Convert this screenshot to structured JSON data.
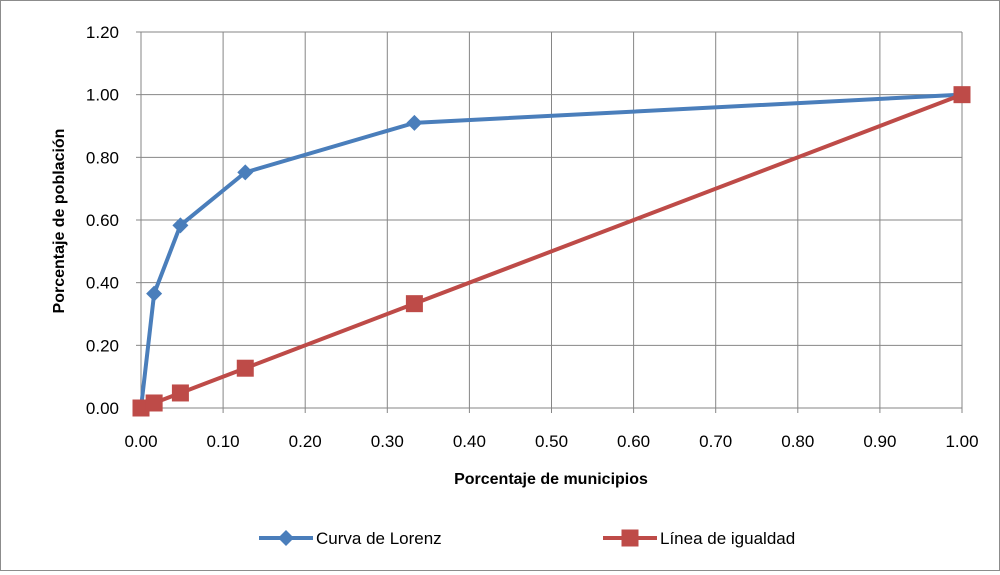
{
  "chart_data": {
    "type": "scatter",
    "title": "",
    "xlabel": "Porcentaje de municipios",
    "ylabel": "Porcentaje de población",
    "xlim": [
      0,
      1
    ],
    "ylim": [
      0,
      1.2
    ],
    "x_ticks": [
      "0.00",
      "0.10",
      "0.20",
      "0.30",
      "0.40",
      "0.50",
      "0.60",
      "0.70",
      "0.80",
      "0.90",
      "1.00"
    ],
    "y_ticks": [
      "0.00",
      "0.20",
      "0.40",
      "0.60",
      "0.80",
      "1.00",
      "1.20"
    ],
    "grid": true,
    "legend_position": "bottom",
    "series": [
      {
        "name": "Curva de Lorenz",
        "color": "#4a7ebb",
        "marker": "diamond",
        "points": [
          [
            0.0,
            0.0
          ],
          [
            0.016,
            0.365
          ],
          [
            0.048,
            0.583
          ],
          [
            0.127,
            0.752
          ],
          [
            0.333,
            0.91
          ],
          [
            1.0,
            1.0
          ]
        ]
      },
      {
        "name": "Línea de igualdad",
        "color": "#be4b48",
        "marker": "square",
        "points": [
          [
            0.0,
            0.0
          ],
          [
            0.016,
            0.016
          ],
          [
            0.048,
            0.048
          ],
          [
            0.127,
            0.127
          ],
          [
            0.333,
            0.333
          ],
          [
            1.0,
            1.0
          ]
        ]
      }
    ]
  }
}
